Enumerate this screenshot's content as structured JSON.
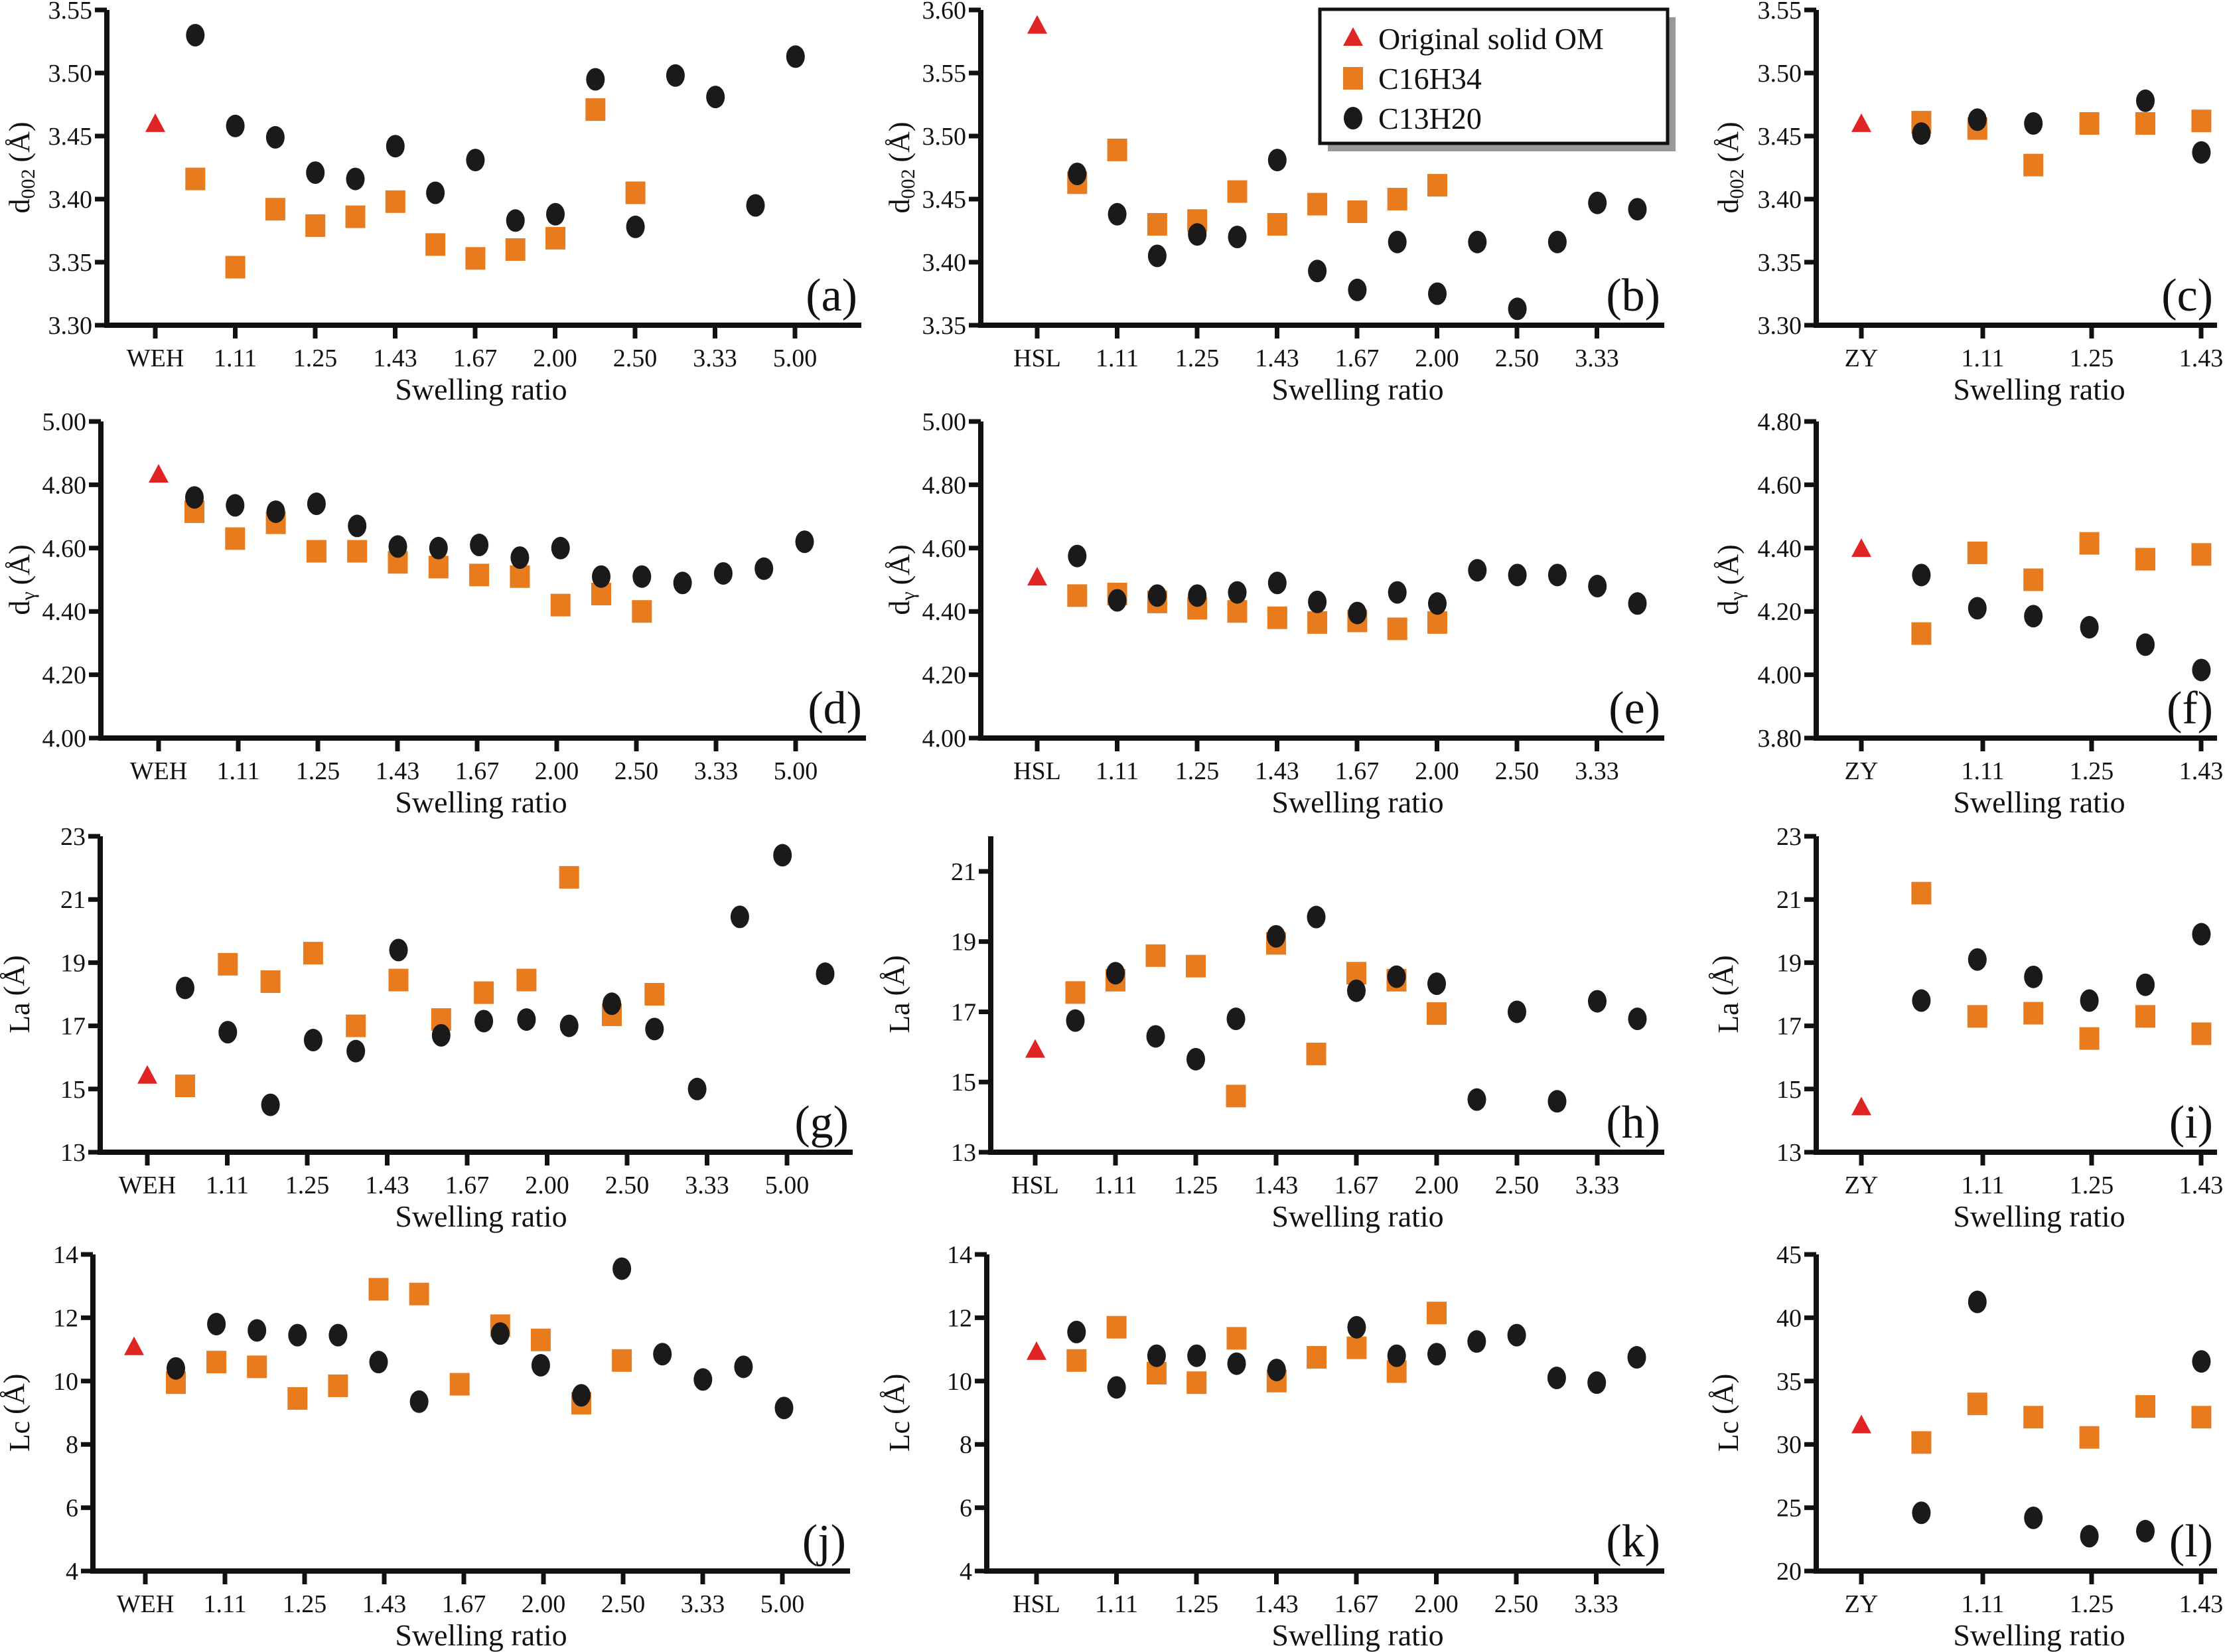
{
  "legend": {
    "items": [
      {
        "name": "Original solid OM",
        "marker": "triangle",
        "color": "#E02424"
      },
      {
        "name": "C16H34",
        "marker": "square",
        "color": "#E87B1E"
      },
      {
        "name": "C13H20",
        "marker": "circle",
        "color": "#1A1A1A"
      }
    ]
  },
  "chart_data": [
    {
      "panel": "(a)",
      "type": "scatter",
      "ylabel": {
        "base": "d",
        "sub": "002",
        "unit": "(Å)"
      },
      "xlabel": "Swelling ratio",
      "ylim": [
        3.3,
        3.55
      ],
      "y_ticks": [
        "3.30",
        "3.35",
        "3.40",
        "3.45",
        "3.50",
        "3.55"
      ],
      "x_tick_labels": [
        "WEH",
        "1.11",
        "1.25",
        "1.43",
        "1.67",
        "2.00",
        "2.50",
        "3.33",
        "5.00"
      ],
      "series": [
        {
          "name": "Original solid OM",
          "values": [
            3.459
          ]
        },
        {
          "name": "C16H34",
          "values": [
            3.416,
            3.346,
            3.392,
            3.379,
            3.386,
            3.398,
            3.364,
            3.353,
            3.36,
            3.369,
            3.471,
            3.405
          ]
        },
        {
          "name": "C13H20",
          "values": [
            3.53,
            3.458,
            3.449,
            3.421,
            3.416,
            3.442,
            3.405,
            3.431,
            3.383,
            3.388,
            3.495,
            3.378,
            3.498,
            3.481,
            3.395,
            3.513
          ]
        }
      ]
    },
    {
      "panel": "(b)",
      "type": "scatter",
      "ylabel": {
        "base": "d",
        "sub": "002",
        "unit": "(Å)"
      },
      "xlabel": "Swelling ratio",
      "ylim": [
        3.35,
        3.6
      ],
      "y_ticks": [
        "3.35",
        "3.40",
        "3.45",
        "3.50",
        "3.55",
        "3.60"
      ],
      "x_tick_labels": [
        "HSL",
        "1.11",
        "1.25",
        "1.43",
        "1.67",
        "2.00",
        "2.50",
        "3.33"
      ],
      "series": [
        {
          "name": "Original solid OM",
          "values": [
            3.587
          ]
        },
        {
          "name": "C16H34",
          "values": [
            3.463,
            3.489,
            3.43,
            3.433,
            3.456,
            3.43,
            3.446,
            3.44,
            3.45,
            3.461
          ]
        },
        {
          "name": "C13H20",
          "values": [
            3.47,
            3.438,
            3.405,
            3.422,
            3.42,
            3.481,
            3.393,
            3.378,
            3.416,
            3.375,
            3.416,
            3.363,
            3.416,
            3.447,
            3.442
          ]
        }
      ]
    },
    {
      "panel": "(c)",
      "type": "scatter",
      "ylabel": {
        "base": "d",
        "sub": "002",
        "unit": "(Å)"
      },
      "xlabel": "Swelling ratio",
      "ylim": [
        3.3,
        3.55
      ],
      "y_ticks": [
        "3.30",
        "3.35",
        "3.40",
        "3.45",
        "3.50",
        "3.55"
      ],
      "x_tick_labels": [
        "ZY",
        "1.11",
        "1.25",
        "1.43"
      ],
      "series": [
        {
          "name": "Original solid OM",
          "values": [
            3.459
          ]
        },
        {
          "name": "C16H34",
          "values": [
            3.461,
            3.456,
            3.427,
            3.46,
            3.46,
            3.462
          ]
        },
        {
          "name": "C13H20",
          "values": [
            3.452,
            3.463,
            3.46,
            null,
            3.478,
            3.437
          ]
        }
      ]
    },
    {
      "panel": "(d)",
      "type": "scatter",
      "ylabel": {
        "base": "d",
        "sub": "γ",
        "unit": "(Å)"
      },
      "xlabel": "Swelling ratio",
      "ylim": [
        4.0,
        5.0
      ],
      "y_ticks": [
        "4.00",
        "4.20",
        "4.40",
        "4.60",
        "4.80",
        "5.00"
      ],
      "x_tick_labels": [
        "WEH",
        "1.11",
        "1.25",
        "1.43",
        "1.67",
        "2.00",
        "2.50",
        "3.33",
        "5.00"
      ],
      "series": [
        {
          "name": "Original solid OM",
          "values": [
            4.83
          ]
        },
        {
          "name": "C16H34",
          "values": [
            4.715,
            4.63,
            4.68,
            4.59,
            4.59,
            4.555,
            4.54,
            4.515,
            4.51,
            4.42,
            4.455,
            4.4
          ]
        },
        {
          "name": "C13H20",
          "values": [
            4.76,
            4.735,
            4.715,
            4.74,
            4.67,
            4.605,
            4.6,
            4.61,
            4.57,
            4.6,
            4.51,
            4.51,
            4.49,
            4.52,
            4.535,
            4.62
          ]
        }
      ]
    },
    {
      "panel": "(e)",
      "type": "scatter",
      "ylabel": {
        "base": "d",
        "sub": "γ",
        "unit": "(Å)"
      },
      "xlabel": "Swelling ratio",
      "ylim": [
        4.0,
        5.0
      ],
      "y_ticks": [
        "4.00",
        "4.20",
        "4.40",
        "4.60",
        "4.80",
        "5.00"
      ],
      "x_tick_labels": [
        "HSL",
        "1.11",
        "1.25",
        "1.43",
        "1.67",
        "2.00",
        "2.50",
        "3.33"
      ],
      "series": [
        {
          "name": "Original solid OM",
          "values": [
            4.505
          ]
        },
        {
          "name": "C16H34",
          "values": [
            4.45,
            4.455,
            4.43,
            4.41,
            4.4,
            4.38,
            4.365,
            4.37,
            4.345,
            4.365
          ]
        },
        {
          "name": "C13H20",
          "values": [
            4.575,
            4.435,
            4.45,
            4.45,
            4.46,
            4.49,
            4.43,
            4.395,
            4.46,
            4.425,
            4.53,
            4.515,
            4.515,
            4.48,
            4.425
          ]
        }
      ]
    },
    {
      "panel": "(f)",
      "type": "scatter",
      "ylabel": {
        "base": "d",
        "sub": "γ",
        "unit": "(Å)"
      },
      "xlabel": "Swelling ratio",
      "ylim": [
        3.8,
        4.8
      ],
      "y_ticks": [
        "3.80",
        "4.00",
        "4.20",
        "4.40",
        "4.60",
        "4.80"
      ],
      "x_tick_labels": [
        "ZY",
        "1.11",
        "1.25",
        "1.43"
      ],
      "series": [
        {
          "name": "Original solid OM",
          "values": [
            4.395
          ]
        },
        {
          "name": "C16H34",
          "values": [
            4.13,
            4.385,
            4.3,
            4.415,
            4.365,
            4.38
          ]
        },
        {
          "name": "C13H20",
          "values": [
            4.315,
            4.21,
            4.185,
            4.15,
            4.095,
            4.015
          ]
        }
      ]
    },
    {
      "panel": "(g)",
      "type": "scatter",
      "ylabel": {
        "base": "La",
        "sub": "",
        "unit": "(Å)"
      },
      "xlabel": "Swelling ratio",
      "ylim": [
        13,
        23
      ],
      "y_ticks": [
        "13",
        "15",
        "17",
        "19",
        "21",
        "23"
      ],
      "x_tick_labels": [
        "WEH",
        "1.11",
        "1.25",
        "1.43",
        "1.67",
        "2.00",
        "2.50",
        "3.33",
        "5.00"
      ],
      "series": [
        {
          "name": "Original solid OM",
          "values": [
            15.4
          ]
        },
        {
          "name": "C16H34",
          "values": [
            15.1,
            18.95,
            18.4,
            19.3,
            17.0,
            18.45,
            17.2,
            18.05,
            18.45,
            21.7,
            17.35,
            18.0
          ]
        },
        {
          "name": "C13H20",
          "values": [
            18.2,
            16.8,
            14.5,
            16.55,
            16.2,
            19.4,
            16.7,
            17.15,
            17.2,
            17.0,
            17.7,
            16.9,
            15.0,
            20.45,
            22.4,
            18.65
          ]
        }
      ]
    },
    {
      "panel": "(h)",
      "type": "scatter",
      "ylabel": {
        "base": "La",
        "sub": "",
        "unit": "(Å)"
      },
      "xlabel": "Swelling ratio",
      "ylim": [
        13,
        22
      ],
      "y_ticks": [
        "13",
        "15",
        "17",
        "19",
        "21"
      ],
      "x_tick_labels": [
        "HSL",
        "1.11",
        "1.25",
        "1.43",
        "1.67",
        "2.00",
        "2.50",
        "3.33"
      ],
      "series": [
        {
          "name": "Original solid OM",
          "values": [
            15.9
          ]
        },
        {
          "name": "C16H34",
          "values": [
            17.55,
            17.9,
            18.6,
            18.3,
            14.6,
            18.95,
            15.8,
            18.1,
            17.9,
            16.95
          ]
        },
        {
          "name": "C13H20",
          "values": [
            16.75,
            18.1,
            16.3,
            15.65,
            16.8,
            19.15,
            19.7,
            17.6,
            18.0,
            17.8,
            14.5,
            17.0,
            14.45,
            17.3,
            16.8
          ]
        }
      ]
    },
    {
      "panel": "(i)",
      "type": "scatter",
      "ylabel": {
        "base": "La",
        "sub": "",
        "unit": "(Å)"
      },
      "xlabel": "Swelling ratio",
      "ylim": [
        13,
        23
      ],
      "y_ticks": [
        "13",
        "15",
        "17",
        "19",
        "21",
        "23"
      ],
      "x_tick_labels": [
        "ZY",
        "1.11",
        "1.25",
        "1.43"
      ],
      "series": [
        {
          "name": "Original solid OM",
          "values": [
            14.4
          ]
        },
        {
          "name": "C16H34",
          "values": [
            21.2,
            17.3,
            17.4,
            16.6,
            17.3,
            16.75
          ]
        },
        {
          "name": "C13H20",
          "values": [
            17.8,
            19.1,
            18.55,
            17.8,
            18.3,
            19.9
          ]
        }
      ]
    },
    {
      "panel": "(j)",
      "type": "scatter",
      "ylabel": {
        "base": "Lc",
        "sub": "",
        "unit": "(Å)"
      },
      "xlabel": "Swelling ratio",
      "ylim": [
        4,
        14
      ],
      "y_ticks": [
        "4",
        "6",
        "8",
        "10",
        "12",
        "14"
      ],
      "x_tick_labels": [
        "WEH",
        "1.11",
        "1.25",
        "1.43",
        "1.67",
        "2.00",
        "2.50",
        "3.33",
        "5.00"
      ],
      "series": [
        {
          "name": "Original solid OM",
          "values": [
            11.05
          ]
        },
        {
          "name": "C16H34",
          "values": [
            9.95,
            10.6,
            10.45,
            9.45,
            9.85,
            12.9,
            12.75,
            9.9,
            11.75,
            11.3,
            9.3,
            10.65
          ]
        },
        {
          "name": "C13H20",
          "values": [
            10.4,
            11.8,
            11.6,
            11.45,
            11.45,
            10.6,
            9.35,
            null,
            11.5,
            10.5,
            9.55,
            13.55,
            10.85,
            10.05,
            10.45,
            9.15
          ]
        }
      ]
    },
    {
      "panel": "(k)",
      "type": "scatter",
      "ylabel": {
        "base": "Lc",
        "sub": "",
        "unit": "(Å)"
      },
      "xlabel": "Swelling ratio",
      "ylim": [
        4,
        14
      ],
      "y_ticks": [
        "4",
        "6",
        "8",
        "10",
        "12",
        "14"
      ],
      "x_tick_labels": [
        "HSL",
        "1.11",
        "1.25",
        "1.43",
        "1.67",
        "2.00",
        "2.50",
        "3.33"
      ],
      "series": [
        {
          "name": "Original solid OM",
          "values": [
            10.9
          ]
        },
        {
          "name": "C16H34",
          "values": [
            10.65,
            11.7,
            10.25,
            9.95,
            11.35,
            10.0,
            10.75,
            11.05,
            10.3,
            12.15
          ]
        },
        {
          "name": "C13H20",
          "values": [
            11.55,
            9.8,
            10.8,
            10.8,
            10.55,
            10.35,
            null,
            11.7,
            10.8,
            10.85,
            11.25,
            11.45,
            10.1,
            9.95,
            10.75
          ]
        }
      ]
    },
    {
      "panel": "(l)",
      "type": "scatter",
      "ylabel": {
        "base": "Lc",
        "sub": "",
        "unit": "(Å)"
      },
      "xlabel": "Swelling ratio",
      "ylim": [
        20,
        45
      ],
      "y_ticks": [
        "20",
        "25",
        "30",
        "35",
        "40",
        "45"
      ],
      "x_tick_labels": [
        "ZY",
        "1.11",
        "1.25",
        "1.43"
      ],
      "series": [
        {
          "name": "Original solid OM",
          "values": [
            31.45
          ]
        },
        {
          "name": "C16H34",
          "values": [
            30.15,
            33.2,
            32.15,
            30.55,
            33.0,
            32.15
          ]
        },
        {
          "name": "C13H20",
          "values": [
            24.6,
            41.25,
            24.2,
            22.75,
            23.15,
            36.55
          ]
        }
      ]
    }
  ]
}
